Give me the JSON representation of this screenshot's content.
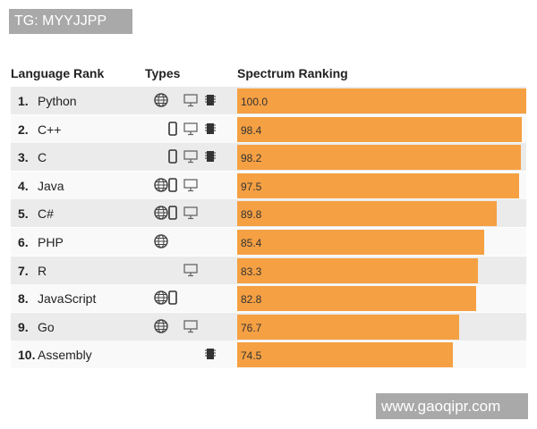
{
  "watermarks": {
    "top": "TG: MYYJJPP",
    "bottom": "www.gaoqipr.com"
  },
  "headers": {
    "rank": "Language Rank",
    "types": "Types",
    "ranking": "Spectrum Ranking"
  },
  "colors": {
    "bar": "#f5a043",
    "row_alt": "#ebebeb"
  },
  "chart_data": {
    "type": "bar",
    "orientation": "horizontal",
    "categories": [
      "Python",
      "C++",
      "C",
      "Java",
      "C#",
      "PHP",
      "R",
      "JavaScript",
      "Go",
      "Assembly"
    ],
    "ranks": [
      "1.",
      "2.",
      "3.",
      "4.",
      "5.",
      "6.",
      "7.",
      "8.",
      "9.",
      "10."
    ],
    "values": [
      100.0,
      98.4,
      98.2,
      97.5,
      89.8,
      85.4,
      83.3,
      82.8,
      76.7,
      74.5
    ],
    "labels": [
      "100.0",
      "98.4",
      "98.2",
      "97.5",
      "89.8",
      "85.4",
      "83.3",
      "82.8",
      "76.7",
      "74.5"
    ],
    "types": [
      [
        "web",
        "desktop",
        "embedded"
      ],
      [
        "mobile",
        "desktop",
        "embedded"
      ],
      [
        "mobile",
        "desktop",
        "embedded"
      ],
      [
        "web",
        "mobile",
        "desktop"
      ],
      [
        "web",
        "mobile",
        "desktop"
      ],
      [
        "web"
      ],
      [
        "desktop"
      ],
      [
        "web",
        "mobile"
      ],
      [
        "web",
        "desktop"
      ],
      [
        "embedded"
      ]
    ],
    "xlim": [
      0,
      100
    ]
  }
}
